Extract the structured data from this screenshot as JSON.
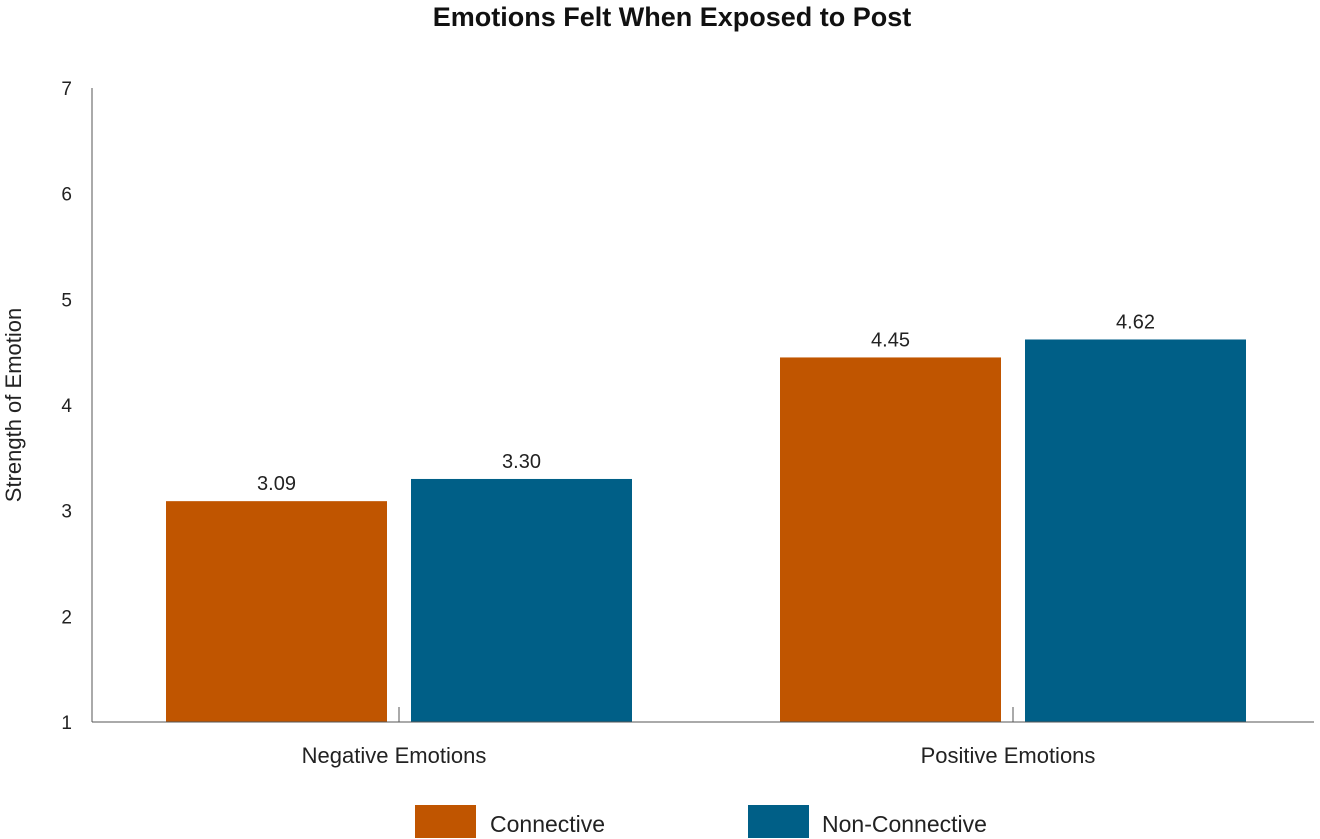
{
  "chart_data": {
    "type": "bar",
    "title": "Emotions Felt When Exposed to Post",
    "xlabel": "",
    "ylabel": "Strength of Emotion",
    "ylim": [
      1,
      7
    ],
    "yticks": [
      1,
      2,
      3,
      4,
      5,
      6,
      7
    ],
    "categories": [
      "Negative Emotions",
      "Positive Emotions"
    ],
    "series": [
      {
        "name": "Connective",
        "color": "#c05500",
        "values": [
          3.09,
          4.45
        ],
        "labels": [
          "3.09",
          "4.45"
        ]
      },
      {
        "name": "Non-Connective",
        "color": "#005f87",
        "values": [
          3.3,
          4.62
        ],
        "labels": [
          "3.30",
          "4.62"
        ]
      }
    ],
    "grid": false,
    "legend_position": "bottom-center"
  }
}
